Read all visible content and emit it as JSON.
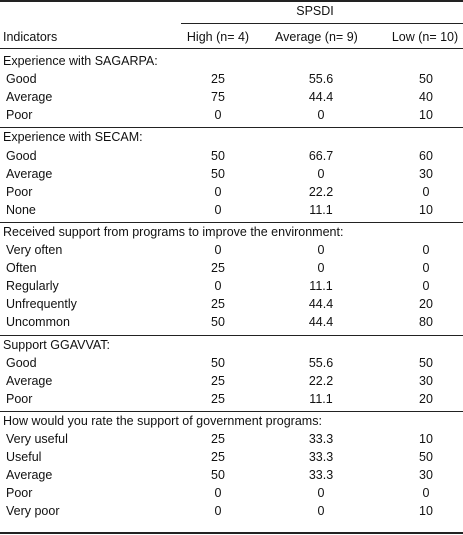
{
  "header": {
    "group": "SPSDI",
    "indicators": "Indicators",
    "col_high": "High (n= 4)",
    "col_average": "Average (n= 9)",
    "col_low": "Low (n= 10)"
  },
  "sections": [
    {
      "title": "Experience with SAGARPA:",
      "rows": [
        {
          "label": "Good",
          "high": "25",
          "average": "55.6",
          "low": "50"
        },
        {
          "label": "Average",
          "high": "75",
          "average": "44.4",
          "low": "40"
        },
        {
          "label": "Poor",
          "high": "0",
          "average": "0",
          "low": "10"
        }
      ]
    },
    {
      "title": "Experience with SECAM:",
      "rows": [
        {
          "label": "Good",
          "high": "50",
          "average": "66.7",
          "low": "60"
        },
        {
          "label": "Average",
          "high": "50",
          "average": "0",
          "low": "30"
        },
        {
          "label": "Poor",
          "high": "0",
          "average": "22.2",
          "low": "0"
        },
        {
          "label": "None",
          "high": "0",
          "average": "11.1",
          "low": "10"
        }
      ]
    },
    {
      "title": "Received support from programs to improve the environment:",
      "rows": [
        {
          "label": "Very often",
          "high": "0",
          "average": "0",
          "low": "0"
        },
        {
          "label": "Often",
          "high": "25",
          "average": "0",
          "low": "0"
        },
        {
          "label": "Regularly",
          "high": "0",
          "average": "11.1",
          "low": "0"
        },
        {
          "label": "Unfrequently",
          "high": "25",
          "average": "44.4",
          "low": "20"
        },
        {
          "label": "Uncommon",
          "high": "50",
          "average": "44.4",
          "low": "80"
        }
      ]
    },
    {
      "title": "Support GGAVVAT:",
      "rows": [
        {
          "label": "Good",
          "high": "50",
          "average": "55.6",
          "low": "50"
        },
        {
          "label": "Average",
          "high": "25",
          "average": "22.2",
          "low": "30"
        },
        {
          "label": "Poor",
          "high": "25",
          "average": "11.1",
          "low": "20"
        }
      ]
    },
    {
      "title": "How would you rate the support of government programs:",
      "rows": [
        {
          "label": "Very useful",
          "high": "25",
          "average": "33.3",
          "low": "10"
        },
        {
          "label": "Useful",
          "high": "25",
          "average": "33.3",
          "low": "50"
        },
        {
          "label": "Average",
          "high": "50",
          "average": "33.3",
          "low": "30"
        },
        {
          "label": "Poor",
          "high": "0",
          "average": "0",
          "low": "0"
        },
        {
          "label": "Very poor",
          "high": "0",
          "average": "0",
          "low": "10"
        }
      ]
    }
  ]
}
